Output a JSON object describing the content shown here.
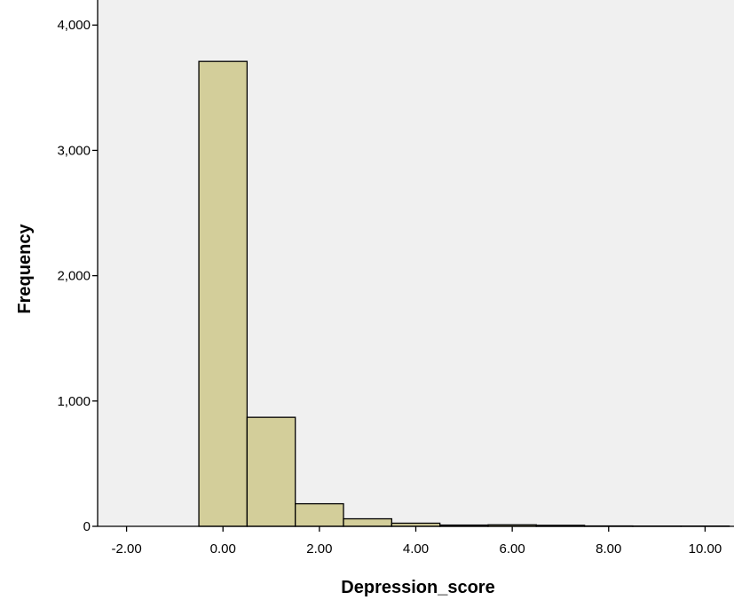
{
  "chart_data": {
    "type": "bar",
    "subtype": "histogram",
    "xlabel": "Depression_score",
    "ylabel": "Frequency",
    "xlim": [
      -2.6,
      10.6
    ],
    "ylim": [
      0,
      4200
    ],
    "x_ticks": [
      {
        "value": -2,
        "label": "-2.00"
      },
      {
        "value": 0,
        "label": "0.00"
      },
      {
        "value": 2,
        "label": "2.00"
      },
      {
        "value": 4,
        "label": "4.00"
      },
      {
        "value": 6,
        "label": "6.00"
      },
      {
        "value": 8,
        "label": "8.00"
      },
      {
        "value": 10,
        "label": "10.00"
      }
    ],
    "y_ticks": [
      {
        "value": 0,
        "label": "0"
      },
      {
        "value": 1000,
        "label": "1,000"
      },
      {
        "value": 2000,
        "label": "2,000"
      },
      {
        "value": 3000,
        "label": "3,000"
      },
      {
        "value": 4000,
        "label": "4,000"
      }
    ],
    "bins": [
      {
        "x0": -0.5,
        "x1": 0.5,
        "count": 3710
      },
      {
        "x0": 0.5,
        "x1": 1.5,
        "count": 870
      },
      {
        "x0": 1.5,
        "x1": 2.5,
        "count": 180
      },
      {
        "x0": 2.5,
        "x1": 3.5,
        "count": 60
      },
      {
        "x0": 3.5,
        "x1": 4.5,
        "count": 25
      },
      {
        "x0": 4.5,
        "x1": 5.5,
        "count": 10
      },
      {
        "x0": 5.5,
        "x1": 6.5,
        "count": 12
      },
      {
        "x0": 6.5,
        "x1": 7.5,
        "count": 8
      },
      {
        "x0": 7.5,
        "x1": 8.5,
        "count": 3
      },
      {
        "x0": 8.5,
        "x1": 9.5,
        "count": 2
      },
      {
        "x0": 9.5,
        "x1": 10.5,
        "count": 2
      }
    ],
    "grid": false,
    "legend": "none",
    "colors": {
      "bar_fill": "#d3ce9a",
      "bar_stroke": "#000000",
      "plot_background": "#f0f0f0",
      "page_background": "#ffffff",
      "axis": "#000000"
    }
  }
}
